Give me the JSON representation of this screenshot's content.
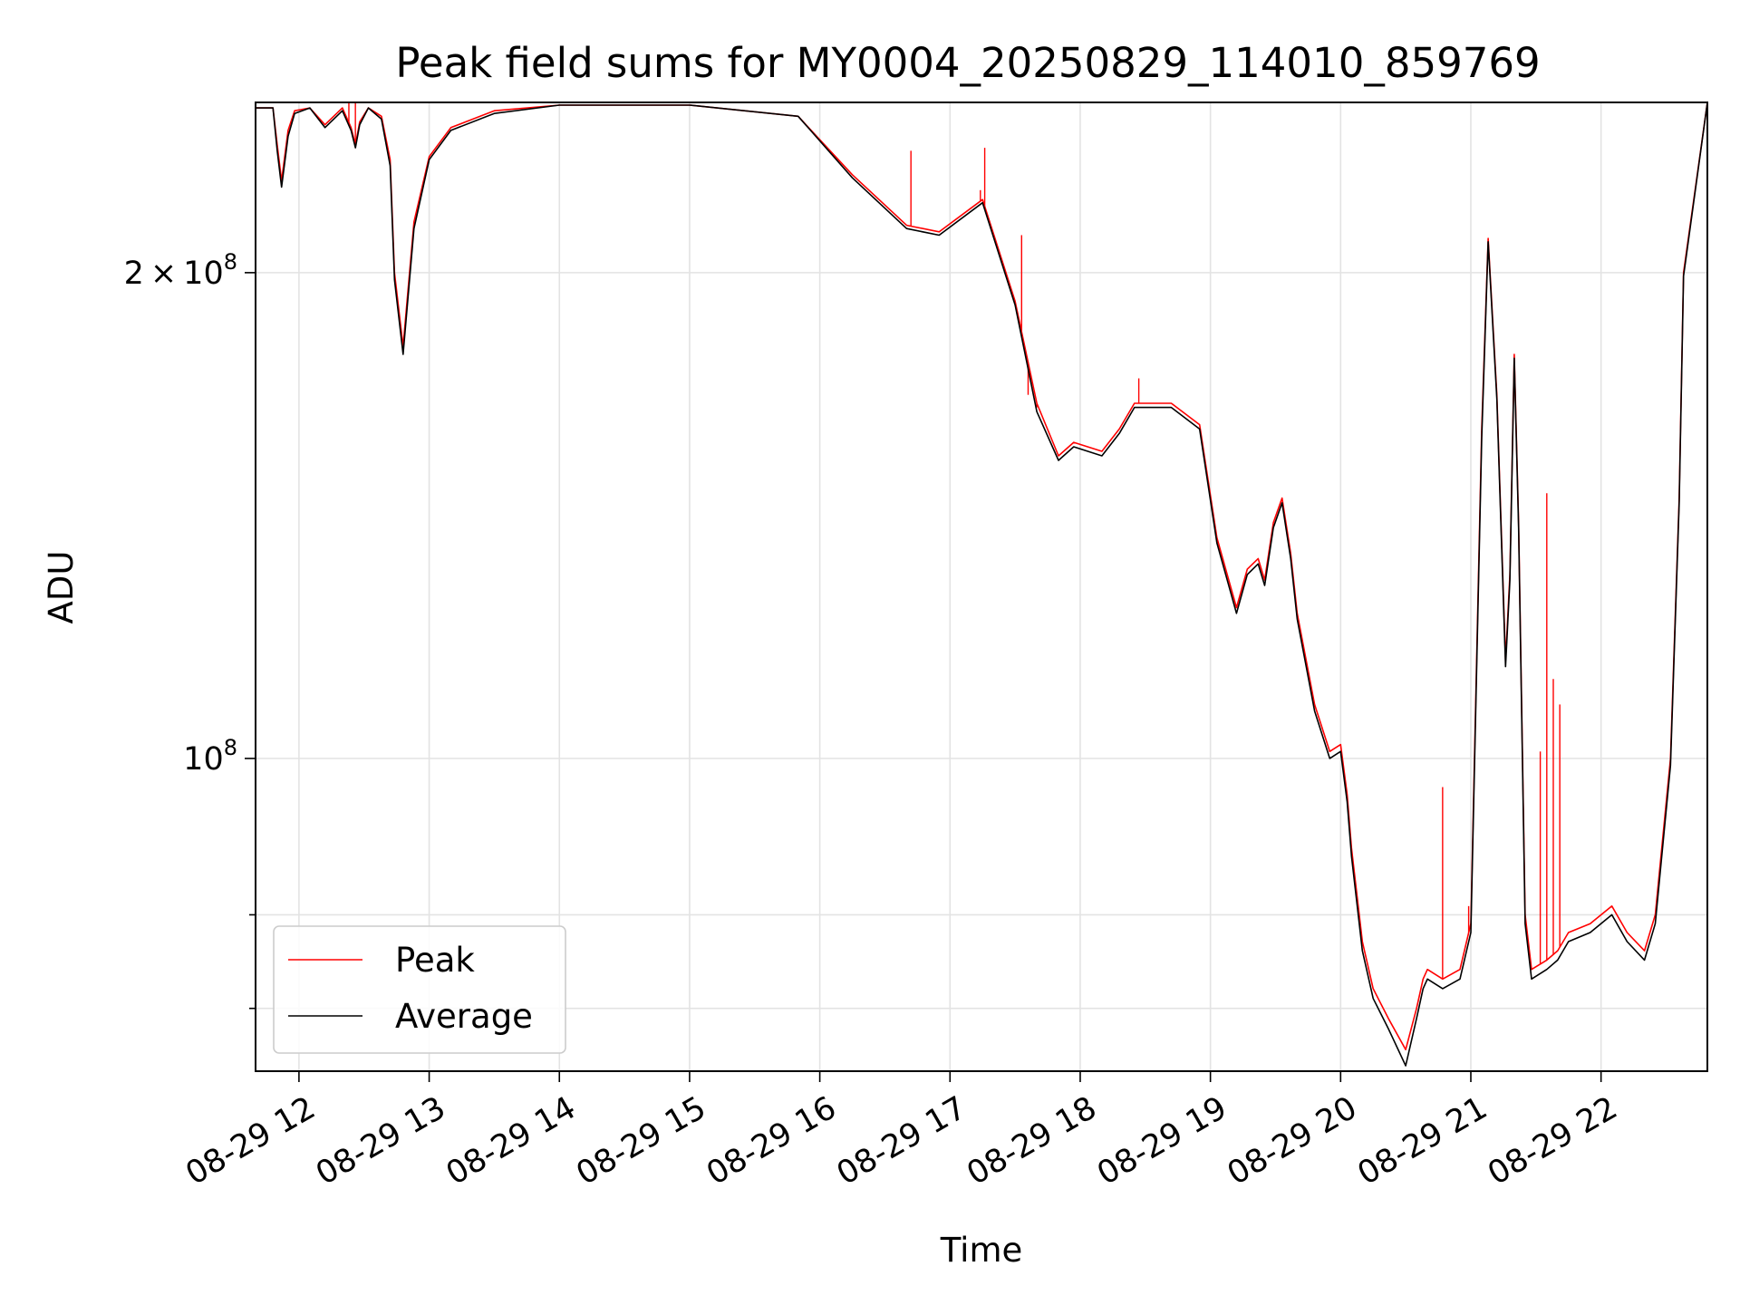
{
  "chart_data": {
    "type": "line",
    "title": "Peak field sums for MY0004_20250829_114010_859769",
    "xlabel": "Time",
    "ylabel": "ADU",
    "yscale": "log",
    "xlim": [
      "2025-08-29 11:40",
      "2025-08-29 22:49"
    ],
    "ylim": [
      64000000,
      255000000
    ],
    "grid": true,
    "legend_position": "lower-left",
    "x_ticks": [
      {
        "value": "2025-08-29 12:00",
        "label": "08-29 12"
      },
      {
        "value": "2025-08-29 13:00",
        "label": "08-29 13"
      },
      {
        "value": "2025-08-29 14:00",
        "label": "08-29 14"
      },
      {
        "value": "2025-08-29 15:00",
        "label": "08-29 15"
      },
      {
        "value": "2025-08-29 16:00",
        "label": "08-29 16"
      },
      {
        "value": "2025-08-29 17:00",
        "label": "08-29 17"
      },
      {
        "value": "2025-08-29 18:00",
        "label": "08-29 18"
      },
      {
        "value": "2025-08-29 19:00",
        "label": "08-29 19"
      },
      {
        "value": "2025-08-29 20:00",
        "label": "08-29 20"
      },
      {
        "value": "2025-08-29 21:00",
        "label": "08-29 21"
      },
      {
        "value": "2025-08-29 22:00",
        "label": "08-29 22"
      }
    ],
    "y_major_ticks": [
      {
        "value": 100000000,
        "base": "10",
        "exp": "8",
        "mant": ""
      },
      {
        "value": 200000000,
        "base": "10",
        "exp": "8",
        "mant": "2"
      }
    ],
    "y_minor_ticks": [
      70000000,
      80000000
    ],
    "series": [
      {
        "name": "Peak",
        "color": "#ff0000",
        "x": [
          "2025-08-29 11:40",
          "2025-08-29 11:48",
          "2025-08-29 11:50",
          "2025-08-29 11:52",
          "2025-08-29 11:55",
          "2025-08-29 11:58",
          "2025-08-29 12:05",
          "2025-08-29 12:12",
          "2025-08-29 12:20",
          "2025-08-29 12:24",
          "2025-08-29 12:26",
          "2025-08-29 12:28",
          "2025-08-29 12:32",
          "2025-08-29 12:38",
          "2025-08-29 12:42",
          "2025-08-29 12:44",
          "2025-08-29 12:48",
          "2025-08-29 12:53",
          "2025-08-29 13:00",
          "2025-08-29 13:10",
          "2025-08-29 13:30",
          "2025-08-29 14:00",
          "2025-08-29 15:00",
          "2025-08-29 15:50",
          "2025-08-29 16:15",
          "2025-08-29 16:40",
          "2025-08-29 16:55",
          "2025-08-29 17:15",
          "2025-08-29 17:30",
          "2025-08-29 17:40",
          "2025-08-29 17:50",
          "2025-08-29 17:57",
          "2025-08-29 18:10",
          "2025-08-29 18:18",
          "2025-08-29 18:25",
          "2025-08-29 18:42",
          "2025-08-29 18:55",
          "2025-08-29 19:03",
          "2025-08-29 19:12",
          "2025-08-29 19:17",
          "2025-08-29 19:22",
          "2025-08-29 19:25",
          "2025-08-29 19:29",
          "2025-08-29 19:33",
          "2025-08-29 19:37",
          "2025-08-29 19:40",
          "2025-08-29 19:48",
          "2025-08-29 19:55",
          "2025-08-29 20:00",
          "2025-08-29 20:03",
          "2025-08-29 20:05",
          "2025-08-29 20:10",
          "2025-08-29 20:15",
          "2025-08-29 20:22",
          "2025-08-29 20:30",
          "2025-08-29 20:35",
          "2025-08-29 20:38",
          "2025-08-29 20:40",
          "2025-08-29 20:47",
          "2025-08-29 20:55",
          "2025-08-29 21:00",
          "2025-08-29 21:05",
          "2025-08-29 21:08",
          "2025-08-29 21:12",
          "2025-08-29 21:16",
          "2025-08-29 21:18",
          "2025-08-29 21:20",
          "2025-08-29 21:22",
          "2025-08-29 21:25",
          "2025-08-29 21:28",
          "2025-08-29 21:35",
          "2025-08-29 21:40",
          "2025-08-29 21:45",
          "2025-08-29 21:55",
          "2025-08-29 22:05",
          "2025-08-29 22:12",
          "2025-08-29 22:20",
          "2025-08-29 22:25",
          "2025-08-29 22:32",
          "2025-08-29 22:36",
          "2025-08-29 22:38",
          "2025-08-29 22:49"
        ],
        "y": [
          253000000,
          253000000,
          240000000,
          228000000,
          245000000,
          252000000,
          253000000,
          247000000,
          253000000,
          246000000,
          240000000,
          248000000,
          253000000,
          250000000,
          235000000,
          200000000,
          180000000,
          215000000,
          236000000,
          246000000,
          252000000,
          254000000,
          254000000,
          250000000,
          230000000,
          214000000,
          212000000,
          222000000,
          192000000,
          166000000,
          154000000,
          157000000,
          155000000,
          160000000,
          166000000,
          166000000,
          161000000,
          137000000,
          124000000,
          131000000,
          133000000,
          129000000,
          140000000,
          145000000,
          134000000,
          123000000,
          108000000,
          101000000,
          102000000,
          95000000,
          88000000,
          77000000,
          72000000,
          69000000,
          66000000,
          70000000,
          73000000,
          74000000,
          73000000,
          74000000,
          79000000,
          160000000,
          210000000,
          168000000,
          115000000,
          130000000,
          178000000,
          140000000,
          80000000,
          74000000,
          75000000,
          76000000,
          78000000,
          79000000,
          81000000,
          78000000,
          76000000,
          80000000,
          100000000,
          145000000,
          200000000,
          255000000
        ],
        "spikes": [
          {
            "x": "2025-08-29 12:23",
            "y": 255000000
          },
          {
            "x": "2025-08-29 12:26",
            "y": 255000000
          },
          {
            "x": "2025-08-29 16:42",
            "y": 238000000
          },
          {
            "x": "2025-08-29 17:14",
            "y": 225000000
          },
          {
            "x": "2025-08-29 17:16",
            "y": 239000000
          },
          {
            "x": "2025-08-29 17:33",
            "y": 211000000
          },
          {
            "x": "2025-08-29 17:36",
            "y": 168000000
          },
          {
            "x": "2025-08-29 17:40",
            "y": 165000000
          },
          {
            "x": "2025-08-29 18:27",
            "y": 172000000
          },
          {
            "x": "2025-08-29 20:47",
            "y": 96000000
          },
          {
            "x": "2025-08-29 20:59",
            "y": 81000000
          },
          {
            "x": "2025-08-29 21:32",
            "y": 101000000
          },
          {
            "x": "2025-08-29 21:35",
            "y": 146000000
          },
          {
            "x": "2025-08-29 21:38",
            "y": 112000000
          },
          {
            "x": "2025-08-29 21:41",
            "y": 108000000
          }
        ]
      },
      {
        "name": "Average",
        "color": "#000000",
        "x": [
          "2025-08-29 11:40",
          "2025-08-29 11:48",
          "2025-08-29 11:50",
          "2025-08-29 11:52",
          "2025-08-29 11:55",
          "2025-08-29 11:58",
          "2025-08-29 12:05",
          "2025-08-29 12:12",
          "2025-08-29 12:20",
          "2025-08-29 12:24",
          "2025-08-29 12:26",
          "2025-08-29 12:28",
          "2025-08-29 12:32",
          "2025-08-29 12:38",
          "2025-08-29 12:42",
          "2025-08-29 12:44",
          "2025-08-29 12:48",
          "2025-08-29 12:53",
          "2025-08-29 13:00",
          "2025-08-29 13:10",
          "2025-08-29 13:30",
          "2025-08-29 14:00",
          "2025-08-29 15:00",
          "2025-08-29 15:50",
          "2025-08-29 16:15",
          "2025-08-29 16:40",
          "2025-08-29 16:55",
          "2025-08-29 17:15",
          "2025-08-29 17:30",
          "2025-08-29 17:40",
          "2025-08-29 17:50",
          "2025-08-29 17:57",
          "2025-08-29 18:10",
          "2025-08-29 18:18",
          "2025-08-29 18:25",
          "2025-08-29 18:42",
          "2025-08-29 18:55",
          "2025-08-29 19:03",
          "2025-08-29 19:12",
          "2025-08-29 19:17",
          "2025-08-29 19:22",
          "2025-08-29 19:25",
          "2025-08-29 19:29",
          "2025-08-29 19:33",
          "2025-08-29 19:37",
          "2025-08-29 19:40",
          "2025-08-29 19:48",
          "2025-08-29 19:55",
          "2025-08-29 20:00",
          "2025-08-29 20:03",
          "2025-08-29 20:05",
          "2025-08-29 20:10",
          "2025-08-29 20:15",
          "2025-08-29 20:22",
          "2025-08-29 20:30",
          "2025-08-29 20:35",
          "2025-08-29 20:38",
          "2025-08-29 20:40",
          "2025-08-29 20:47",
          "2025-08-29 20:55",
          "2025-08-29 21:00",
          "2025-08-29 21:05",
          "2025-08-29 21:08",
          "2025-08-29 21:12",
          "2025-08-29 21:16",
          "2025-08-29 21:18",
          "2025-08-29 21:20",
          "2025-08-29 21:22",
          "2025-08-29 21:25",
          "2025-08-29 21:28",
          "2025-08-29 21:35",
          "2025-08-29 21:40",
          "2025-08-29 21:45",
          "2025-08-29 21:55",
          "2025-08-29 22:05",
          "2025-08-29 22:12",
          "2025-08-29 22:20",
          "2025-08-29 22:25",
          "2025-08-29 22:32",
          "2025-08-29 22:36",
          "2025-08-29 22:38",
          "2025-08-29 22:49"
        ],
        "y": [
          253000000,
          253000000,
          238000000,
          226000000,
          243000000,
          251000000,
          253000000,
          246000000,
          252000000,
          245000000,
          239000000,
          247000000,
          253000000,
          249000000,
          233000000,
          198000000,
          178000000,
          213000000,
          235000000,
          245000000,
          251000000,
          254000000,
          254000000,
          250000000,
          229000000,
          213000000,
          211000000,
          221000000,
          191000000,
          164000000,
          153000000,
          156000000,
          154000000,
          159000000,
          165000000,
          165000000,
          160000000,
          136000000,
          123000000,
          130000000,
          132000000,
          128000000,
          139000000,
          144000000,
          133000000,
          122000000,
          107000000,
          100000000,
          101000000,
          94000000,
          87000000,
          76000000,
          71000000,
          68000000,
          64500000,
          69000000,
          72000000,
          73000000,
          72000000,
          73000000,
          78000000,
          158000000,
          209000000,
          167000000,
          114000000,
          129000000,
          177000000,
          139000000,
          79000000,
          73000000,
          74000000,
          75000000,
          77000000,
          78000000,
          80000000,
          77000000,
          75000000,
          79000000,
          99000000,
          144000000,
          199000000,
          255000000
        ]
      }
    ]
  }
}
